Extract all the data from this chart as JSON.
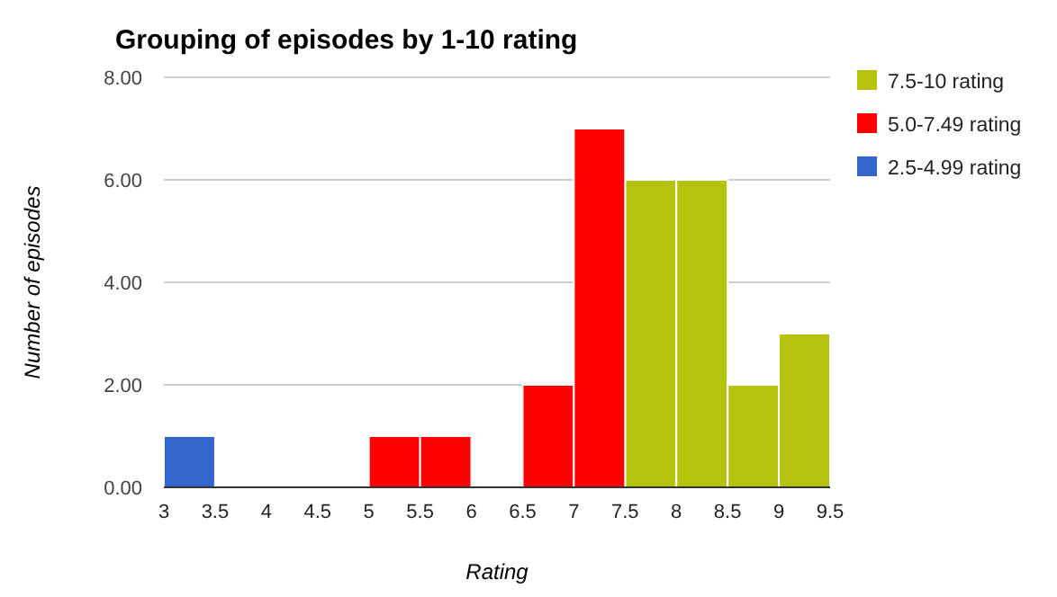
{
  "chart_data": {
    "type": "histogram",
    "title": "Grouping of episodes by 1-10 rating",
    "xlabel": "Rating",
    "ylabel": "Number of episodes",
    "bins": [
      3,
      3.5,
      4,
      4.5,
      5,
      5.5,
      6,
      6.5,
      7,
      7.5,
      8,
      8.5,
      9,
      9.5
    ],
    "series": [
      {
        "name": "7.5-10 rating",
        "color": "#b5c20e",
        "values": [
          null,
          null,
          null,
          null,
          null,
          null,
          null,
          null,
          null,
          6,
          6,
          2,
          3
        ]
      },
      {
        "name": "5.0-7.49 rating",
        "color": "#ff0000",
        "values": [
          null,
          null,
          null,
          null,
          1,
          1,
          0,
          2,
          7,
          null,
          null,
          null,
          null
        ]
      },
      {
        "name": "2.5-4.99 rating",
        "color": "#3366cc",
        "values": [
          1,
          0,
          0,
          0,
          null,
          null,
          null,
          null,
          null,
          null,
          null,
          null,
          null
        ]
      }
    ],
    "xlim": [
      3,
      9.5
    ],
    "xticks": [
      3,
      3.5,
      4,
      4.5,
      5,
      5.5,
      6,
      6.5,
      7,
      7.5,
      8,
      8.5,
      9,
      9.5
    ],
    "ylim": [
      0,
      8
    ],
    "yticks": [
      {
        "value": 0,
        "label": "0.00"
      },
      {
        "value": 2,
        "label": "2.00"
      },
      {
        "value": 4,
        "label": "4.00"
      },
      {
        "value": 6,
        "label": "6.00"
      },
      {
        "value": 8,
        "label": "8.00"
      }
    ],
    "grid": "y",
    "legend": "right"
  }
}
